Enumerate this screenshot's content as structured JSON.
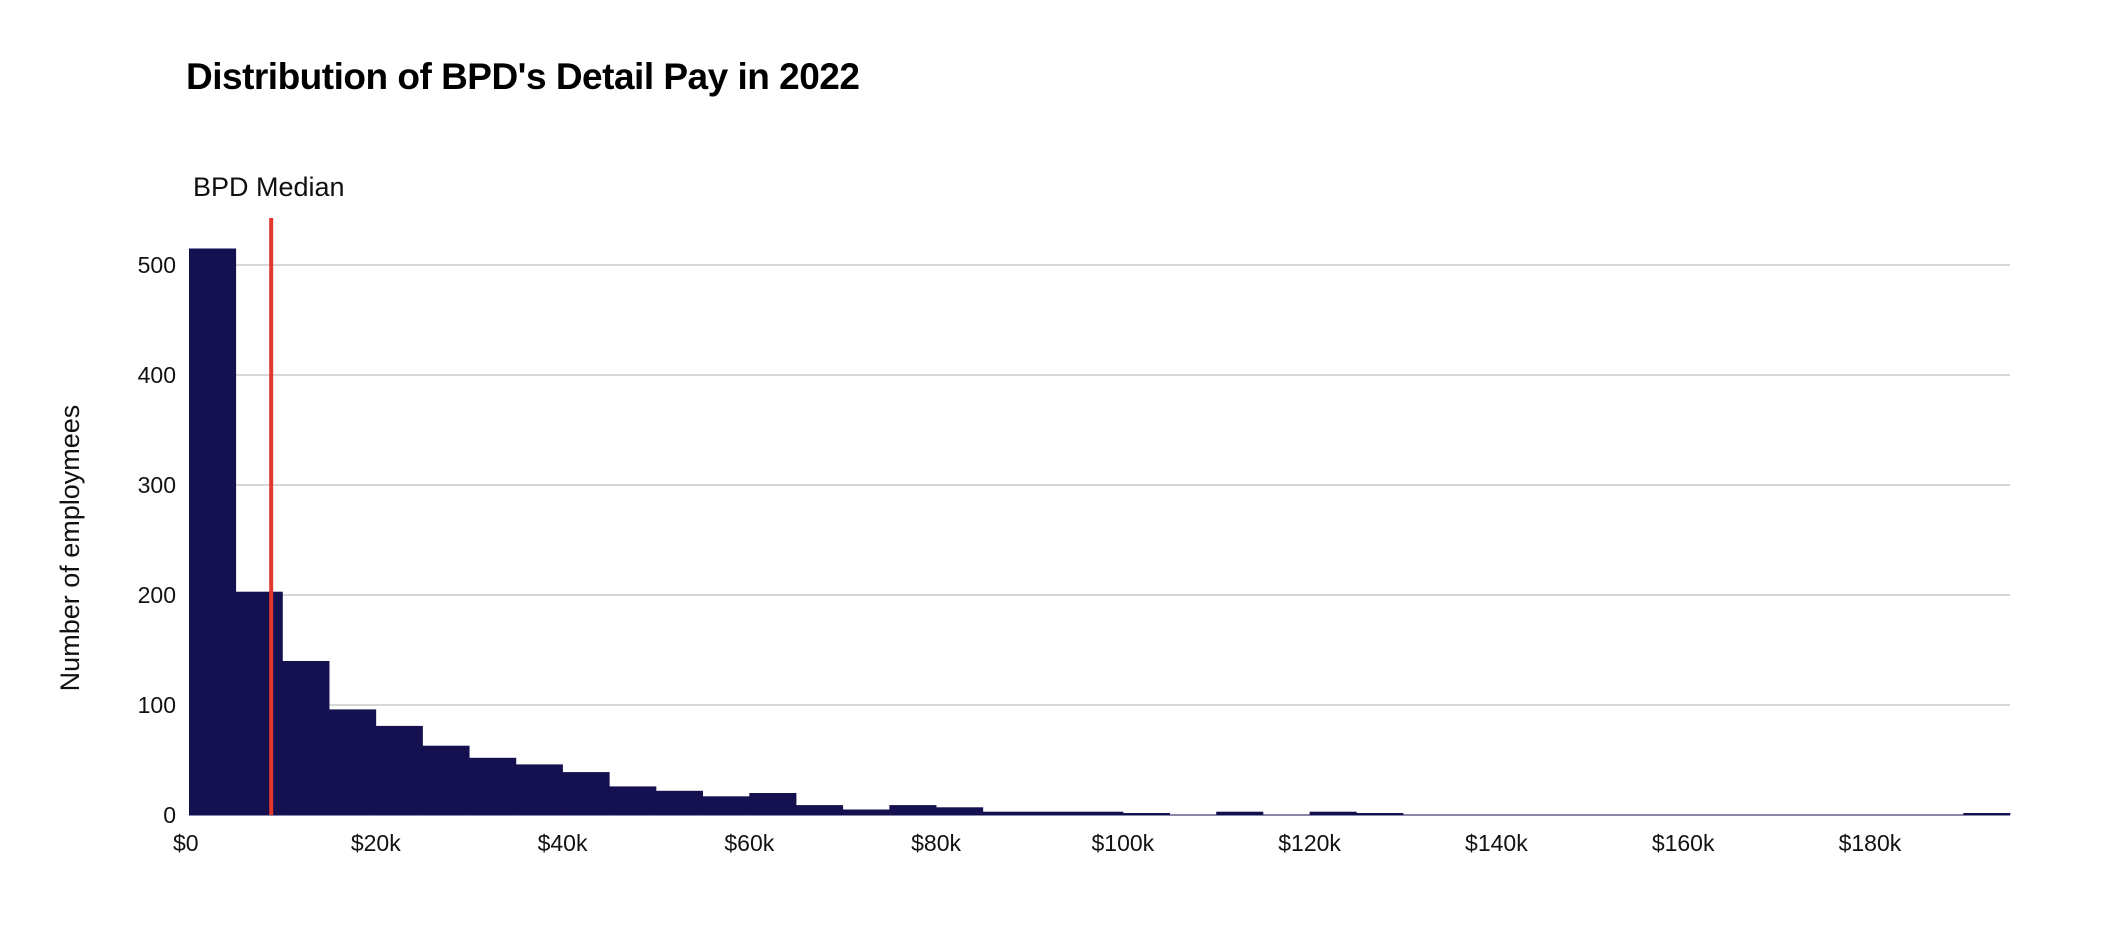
{
  "chart_data": {
    "type": "bar",
    "title": "Distribution of BPD's Detail Pay in 2022",
    "xlabel": "",
    "ylabel": "Number of employmees",
    "bin_width": 5000,
    "x_start": 0,
    "xlim": [
      0,
      195000
    ],
    "ylim": [
      0,
      540
    ],
    "values": [
      515,
      203,
      140,
      96,
      81,
      63,
      52,
      46,
      39,
      26,
      22,
      17,
      20,
      9,
      5,
      9,
      7,
      3,
      3,
      3,
      1,
      0,
      3,
      0,
      3,
      1,
      0,
      0,
      0,
      0,
      0,
      0,
      0,
      0,
      0,
      0,
      0,
      0,
      1
    ],
    "x_ticks": [
      {
        "value": 0,
        "label": "$0"
      },
      {
        "value": 20000,
        "label": "$20k"
      },
      {
        "value": 40000,
        "label": "$40k"
      },
      {
        "value": 60000,
        "label": "$60k"
      },
      {
        "value": 80000,
        "label": "$80k"
      },
      {
        "value": 100000,
        "label": "$100k"
      },
      {
        "value": 120000,
        "label": "$120k"
      },
      {
        "value": 140000,
        "label": "$140k"
      },
      {
        "value": 160000,
        "label": "$160k"
      },
      {
        "value": 180000,
        "label": "$180k"
      }
    ],
    "y_ticks": [
      {
        "value": 0,
        "label": "0"
      },
      {
        "value": 100,
        "label": "100"
      },
      {
        "value": 200,
        "label": "200"
      },
      {
        "value": 300,
        "label": "300"
      },
      {
        "value": 400,
        "label": "400"
      },
      {
        "value": 500,
        "label": "500"
      }
    ],
    "grid": true,
    "median": {
      "value": 8800,
      "label": "BPD Median"
    },
    "colors": {
      "bar": "#151050",
      "median_line": "#e0382f",
      "grid": "#cccccc"
    }
  }
}
